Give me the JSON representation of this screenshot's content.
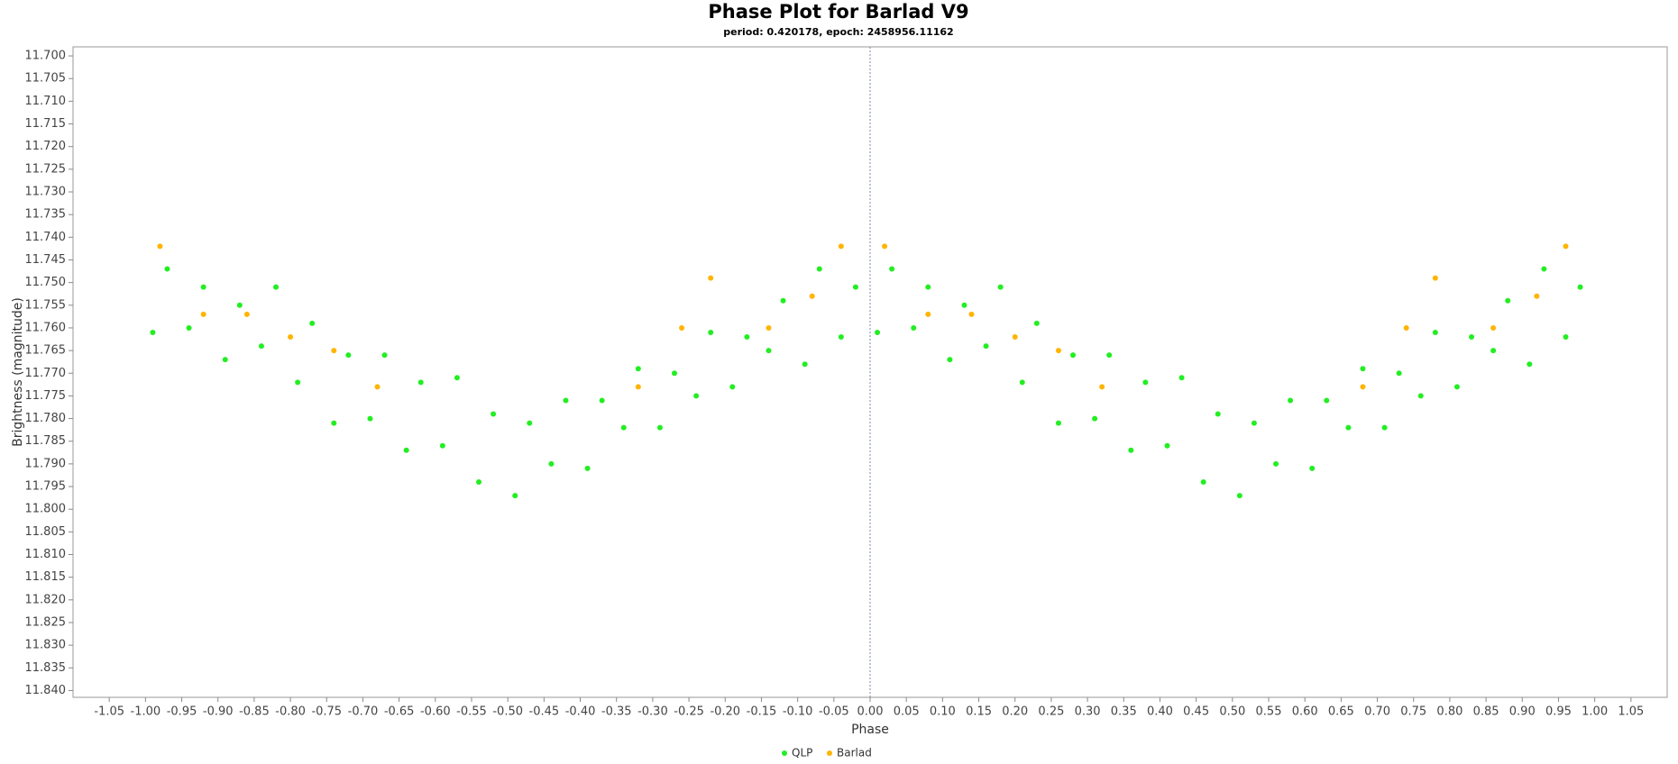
{
  "chart_data": {
    "type": "scatter",
    "title": "Phase Plot for Barlad V9",
    "subtitle": "period: 0.420178, epoch: 2458956.11162",
    "x_label": "Phase",
    "y_label": "Brightness (magnitude)",
    "xlim": [
      -1.1,
      1.1
    ],
    "ylim": [
      11.698,
      11.8415
    ],
    "y_inverted": true,
    "grid": false,
    "marker_x": 0,
    "legend": "bottom",
    "xticks": [
      -1.05,
      {
        "value": -1,
        "label": "-1.00"
      },
      -0.95,
      {
        "value": -0.9,
        "label": "-0.90"
      },
      -0.85,
      {
        "value": -0.8,
        "label": "-0.80"
      },
      -0.75,
      {
        "value": -0.7,
        "label": "-0.70"
      },
      -0.65,
      {
        "value": -0.6,
        "label": "-0.60"
      },
      -0.55,
      {
        "value": -0.5,
        "label": "-0.50"
      },
      -0.45,
      {
        "value": -0.4,
        "label": "-0.40"
      },
      -0.35,
      {
        "value": -0.3,
        "label": "-0.30"
      },
      -0.25,
      {
        "value": -0.2,
        "label": "-0.20"
      },
      -0.15,
      {
        "value": -0.1,
        "label": "-0.10"
      },
      -0.05,
      {
        "value": 0,
        "label": "0.00"
      },
      0.05,
      {
        "value": 0.1,
        "label": "0.10"
      },
      0.15,
      {
        "value": 0.2,
        "label": "0.20"
      },
      0.25,
      {
        "value": 0.3,
        "label": "0.30"
      },
      0.35,
      {
        "value": 0.4,
        "label": "0.40"
      },
      0.45,
      {
        "value": 0.5,
        "label": "0.50"
      },
      0.55,
      {
        "value": 0.6,
        "label": "0.60"
      },
      0.65,
      {
        "value": 0.7,
        "label": "0.70"
      },
      0.75,
      {
        "value": 0.8,
        "label": "0.80"
      },
      0.85,
      {
        "value": 0.9,
        "label": "0.90"
      },
      0.95,
      {
        "value": 1,
        "label": "1.00"
      },
      1.05
    ],
    "yticks": [
      {
        "value": 11.7,
        "label": "11.700"
      },
      11.705,
      {
        "value": 11.71,
        "label": "11.710"
      },
      11.715,
      {
        "value": 11.72,
        "label": "11.720"
      },
      11.725,
      {
        "value": 11.73,
        "label": "11.730"
      },
      11.735,
      {
        "value": 11.74,
        "label": "11.740"
      },
      11.745,
      {
        "value": 11.75,
        "label": "11.750"
      },
      11.755,
      {
        "value": 11.76,
        "label": "11.760"
      },
      11.765,
      {
        "value": 11.77,
        "label": "11.770"
      },
      11.775,
      {
        "value": 11.78,
        "label": "11.780"
      },
      11.785,
      {
        "value": 11.79,
        "label": "11.790"
      },
      11.795,
      {
        "value": 11.8,
        "label": "11.800"
      },
      11.805,
      {
        "value": 11.81,
        "label": "11.810"
      },
      11.815,
      {
        "value": 11.82,
        "label": "11.820"
      },
      11.825,
      {
        "value": 11.83,
        "label": "11.830"
      },
      11.835,
      {
        "value": 11.84,
        "label": "11.840"
      }
    ],
    "series": [
      {
        "name": "QLP",
        "color": "#22ee22",
        "x": [
          0.01,
          0.06,
          0.11,
          0.16,
          0.21,
          0.26,
          0.31,
          0.36,
          0.41,
          0.46,
          0.51,
          0.56,
          0.61,
          0.66,
          0.71,
          0.76,
          0.81,
          0.86,
          0.91,
          0.96,
          0.03,
          0.08,
          0.13,
          0.18,
          0.23,
          0.28,
          0.33,
          0.38,
          0.43,
          0.48,
          0.53,
          0.58,
          0.63,
          0.68,
          0.73,
          0.78,
          0.83,
          0.88,
          0.93,
          0.98,
          -0.99,
          -0.94,
          -0.89,
          -0.84,
          -0.79,
          -0.74,
          -0.69,
          -0.64,
          -0.59,
          -0.54,
          -0.49,
          -0.44,
          -0.39,
          -0.34,
          -0.29,
          -0.24,
          -0.19,
          -0.14,
          -0.09,
          -0.04,
          -0.97,
          -0.92,
          -0.87,
          -0.82,
          -0.77,
          -0.72,
          -0.67,
          -0.62,
          -0.57,
          -0.52,
          -0.47,
          -0.42,
          -0.37,
          -0.32,
          -0.27,
          -0.22,
          -0.17,
          -0.12,
          -0.07,
          -0.02
        ],
        "values": [
          11.761,
          11.76,
          11.767,
          11.764,
          11.772,
          11.781,
          11.78,
          11.787,
          11.786,
          11.794,
          11.797,
          11.79,
          11.791,
          11.782,
          11.782,
          11.775,
          11.773,
          11.765,
          11.768,
          11.762,
          11.747,
          11.751,
          11.755,
          11.751,
          11.759,
          11.766,
          11.766,
          11.772,
          11.771,
          11.779,
          11.781,
          11.776,
          11.776,
          11.769,
          11.77,
          11.761,
          11.762,
          11.754,
          11.747,
          11.751,
          11.761,
          11.76,
          11.767,
          11.764,
          11.772,
          11.781,
          11.78,
          11.787,
          11.786,
          11.794,
          11.797,
          11.79,
          11.791,
          11.782,
          11.782,
          11.775,
          11.773,
          11.765,
          11.768,
          11.762,
          11.747,
          11.751,
          11.755,
          11.751,
          11.759,
          11.766,
          11.766,
          11.772,
          11.771,
          11.779,
          11.781,
          11.776,
          11.776,
          11.769,
          11.77,
          11.761,
          11.762,
          11.754,
          11.747,
          11.751
        ]
      },
      {
        "name": "Barlad",
        "color": "#ffb400",
        "x": [
          0.02,
          0.08,
          0.14,
          0.2,
          0.26,
          0.32,
          0.68,
          0.74,
          0.78,
          0.86,
          0.92,
          0.96,
          -0.98,
          -0.92,
          -0.86,
          -0.8,
          -0.74,
          -0.68,
          -0.32,
          -0.26,
          -0.22,
          -0.14,
          -0.08,
          -0.04
        ],
        "values": [
          11.742,
          11.757,
          11.757,
          11.762,
          11.765,
          11.773,
          11.773,
          11.76,
          11.749,
          11.76,
          11.753,
          11.742,
          11.742,
          11.757,
          11.757,
          11.762,
          11.765,
          11.773,
          11.773,
          11.76,
          11.749,
          11.76,
          11.753,
          11.742
        ]
      }
    ]
  }
}
